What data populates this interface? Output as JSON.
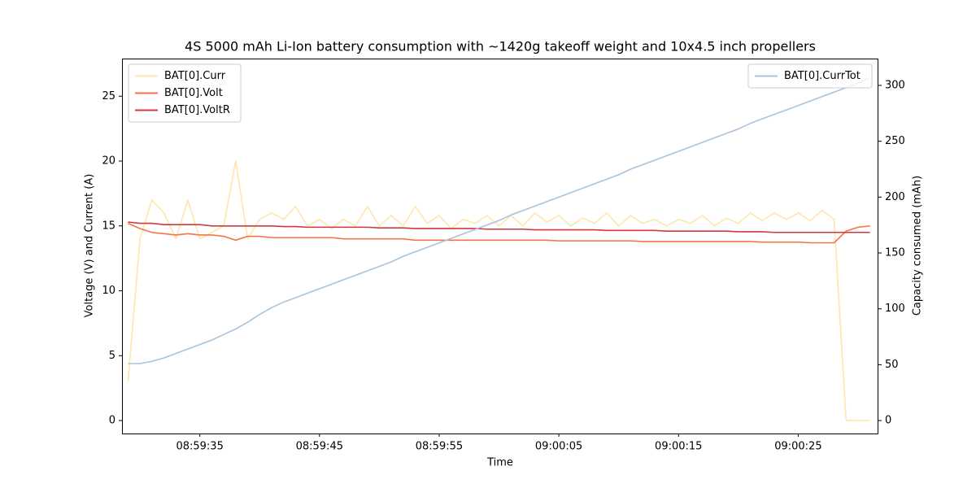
{
  "chart_data": {
    "type": "line",
    "title": "4S 5000 mAh Li-Ion battery consumption with ~1420g takeoff weight and 10x4.5 inch propellers",
    "x_label": "Time",
    "y_label": "Voltage (V) and Current (A)",
    "y2_label": "Capacity consumed (mAh)",
    "x": [
      "08:59:29",
      "08:59:30",
      "08:59:31",
      "08:59:32",
      "08:59:33",
      "08:59:34",
      "08:59:35",
      "08:59:36",
      "08:59:37",
      "08:59:38",
      "08:59:39",
      "08:59:40",
      "08:59:41",
      "08:59:42",
      "08:59:43",
      "08:59:44",
      "08:59:45",
      "08:59:46",
      "08:59:47",
      "08:59:48",
      "08:59:49",
      "08:59:50",
      "08:59:51",
      "08:59:52",
      "08:59:53",
      "08:59:54",
      "08:59:55",
      "08:59:56",
      "08:59:57",
      "08:59:58",
      "08:59:59",
      "09:00:00",
      "09:00:01",
      "09:00:02",
      "09:00:03",
      "09:00:04",
      "09:00:05",
      "09:00:06",
      "09:00:07",
      "09:00:08",
      "09:00:09",
      "09:00:10",
      "09:00:11",
      "09:00:12",
      "09:00:13",
      "09:00:14",
      "09:00:15",
      "09:00:16",
      "09:00:17",
      "09:00:18",
      "09:00:19",
      "09:00:20",
      "09:00:21",
      "09:00:22",
      "09:00:23",
      "09:00:24",
      "09:00:25",
      "09:00:26",
      "09:00:27",
      "09:00:28",
      "09:00:29",
      "09:00:30",
      "09:00:31"
    ],
    "xlim": [
      "08:59:28.5",
      "09:00:31.7"
    ],
    "xticks": [
      "08:59:35",
      "08:59:45",
      "08:59:55",
      "09:00:05",
      "09:00:15",
      "09:00:25"
    ],
    "ylim": [
      -1.0,
      27.9
    ],
    "yticks": [
      0,
      5,
      10,
      15,
      20,
      25
    ],
    "y2lim": [
      -11.6,
      324
    ],
    "y2ticks": [
      0,
      50,
      100,
      150,
      200,
      250,
      300
    ],
    "legend_loc": "upper left",
    "y2_legend_loc": "upper right",
    "series": [
      {
        "name": "BAT[0].Curr",
        "color": "#fee6ae",
        "values": [
          3,
          14,
          17,
          16,
          14,
          17,
          14,
          14.5,
          15,
          20,
          14,
          15.5,
          16,
          15.5,
          16.5,
          15,
          15.5,
          14.8,
          15.5,
          15,
          16.5,
          15,
          15.8,
          15,
          16.5,
          15.2,
          15.8,
          14.8,
          15.5,
          15.2,
          15.8,
          15,
          15.8,
          15,
          16,
          15.3,
          15.8,
          15,
          15.6,
          15.2,
          16,
          15,
          15.8,
          15.2,
          15.5,
          15,
          15.5,
          15.2,
          15.8,
          15,
          15.6,
          15.2,
          16,
          15.4,
          16,
          15.5,
          16,
          15.4,
          16.2,
          15.5,
          0,
          0,
          0
        ]
      },
      {
        "name": "BAT[0].Volt",
        "color": "#f4734a",
        "values": [
          15.2,
          14.8,
          14.5,
          14.4,
          14.3,
          14.4,
          14.3,
          14.3,
          14.2,
          13.9,
          14.2,
          14.2,
          14.1,
          14.1,
          14.1,
          14.1,
          14.1,
          14.1,
          14.0,
          14.0,
          14.0,
          14.0,
          14.0,
          14.0,
          13.9,
          13.9,
          13.9,
          13.9,
          13.9,
          13.9,
          13.9,
          13.9,
          13.9,
          13.9,
          13.9,
          13.9,
          13.85,
          13.85,
          13.85,
          13.85,
          13.85,
          13.85,
          13.85,
          13.8,
          13.8,
          13.8,
          13.8,
          13.8,
          13.8,
          13.8,
          13.8,
          13.8,
          13.8,
          13.75,
          13.75,
          13.75,
          13.75,
          13.7,
          13.7,
          13.7,
          14.6,
          14.9,
          15.0
        ]
      },
      {
        "name": "BAT[0].VoltR",
        "color": "#cf3a3c",
        "values": [
          15.3,
          15.2,
          15.2,
          15.1,
          15.1,
          15.1,
          15.1,
          15.0,
          15.0,
          15.0,
          15.0,
          15.0,
          15.0,
          14.95,
          14.95,
          14.9,
          14.9,
          14.9,
          14.9,
          14.9,
          14.9,
          14.85,
          14.85,
          14.85,
          14.8,
          14.8,
          14.8,
          14.8,
          14.8,
          14.8,
          14.75,
          14.75,
          14.75,
          14.75,
          14.7,
          14.7,
          14.7,
          14.7,
          14.7,
          14.7,
          14.65,
          14.65,
          14.65,
          14.65,
          14.65,
          14.6,
          14.6,
          14.6,
          14.6,
          14.6,
          14.6,
          14.55,
          14.55,
          14.55,
          14.5,
          14.5,
          14.5,
          14.5,
          14.5,
          14.5,
          14.5,
          14.5,
          14.5
        ]
      },
      {
        "name": "BAT[0].CurrTot",
        "color": "#a8c3dc",
        "axis": "y2",
        "values": [
          51,
          51,
          53,
          56,
          60,
          64,
          68,
          72,
          77,
          82,
          88,
          95,
          101,
          106,
          110,
          114,
          118,
          122,
          126,
          130,
          134,
          138,
          142,
          147,
          151,
          155,
          159,
          163,
          167,
          171,
          175,
          179,
          184,
          188,
          192,
          196,
          200,
          204,
          208,
          212,
          216,
          220,
          225,
          229,
          233,
          237,
          241,
          245,
          249,
          253,
          257,
          261,
          266,
          270,
          274,
          278,
          282,
          286,
          290,
          294,
          298,
          302,
          307
        ]
      }
    ]
  }
}
